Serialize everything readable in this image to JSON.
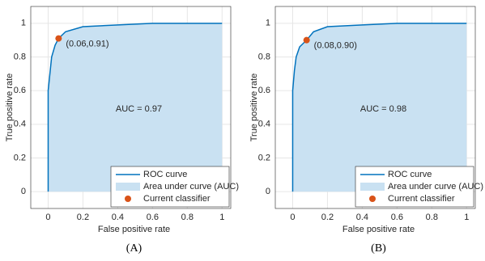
{
  "chart_data": [
    {
      "type": "line",
      "caption": "(A)",
      "x_label": "False positive rate",
      "y_label": "True positive rate",
      "xlim": [
        -0.1,
        1.05
      ],
      "ylim": [
        -0.1,
        1.1
      ],
      "xticks": [
        0,
        0.2,
        0.4,
        0.6,
        0.8,
        1
      ],
      "yticks": [
        0,
        0.2,
        0.4,
        0.6,
        0.8,
        1
      ],
      "grid": true,
      "legend": "lower right",
      "annotation": "AUC = 0.97",
      "series": [
        {
          "name": "ROC curve",
          "color": "#0072bd",
          "x": [
            0,
            0,
            0.01,
            0.02,
            0.04,
            0.06,
            0.1,
            0.2,
            0.4,
            0.6,
            1
          ],
          "values": [
            0,
            0.6,
            0.7,
            0.8,
            0.87,
            0.91,
            0.95,
            0.98,
            0.99,
            1,
            1
          ]
        }
      ],
      "area": {
        "name": "Area under curve (AUC)",
        "color": "#c9e1f2"
      },
      "point": {
        "name": "Current classifier",
        "color": "#d95319",
        "x": 0.06,
        "y": 0.91,
        "label": "(0.06,0.91)"
      }
    },
    {
      "type": "line",
      "caption": "(B)",
      "x_label": "False positive rate",
      "y_label": "True positive rate",
      "xlim": [
        -0.1,
        1.05
      ],
      "ylim": [
        -0.1,
        1.1
      ],
      "xticks": [
        0,
        0.2,
        0.4,
        0.6,
        0.8,
        1
      ],
      "yticks": [
        0,
        0.2,
        0.4,
        0.6,
        0.8,
        1
      ],
      "grid": true,
      "legend": "lower right",
      "annotation": "AUC = 0.98",
      "series": [
        {
          "name": "ROC curve",
          "color": "#0072bd",
          "x": [
            0,
            0,
            0.01,
            0.02,
            0.04,
            0.08,
            0.12,
            0.2,
            0.4,
            0.6,
            1
          ],
          "values": [
            0,
            0.6,
            0.72,
            0.8,
            0.86,
            0.9,
            0.95,
            0.98,
            0.99,
            1,
            1
          ]
        }
      ],
      "area": {
        "name": "Area under curve (AUC)",
        "color": "#c9e1f2"
      },
      "point": {
        "name": "Current classifier",
        "color": "#d95319",
        "x": 0.08,
        "y": 0.9,
        "label": "(0.08,0.90)"
      }
    }
  ]
}
